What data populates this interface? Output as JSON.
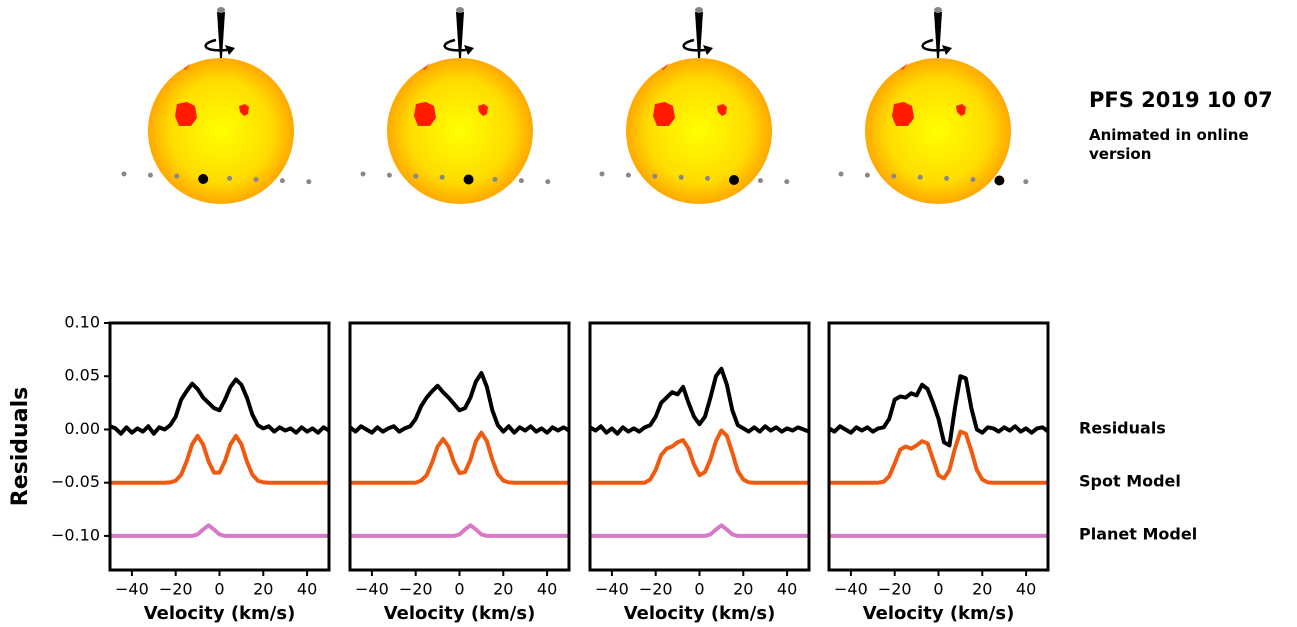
{
  "title": "PFS 2019 10 07",
  "subtitle": "Animated in online version",
  "chart_data": [
    {
      "type": "line",
      "ylabel": "Residuals",
      "xlabel": "Velocity (km/s)",
      "xlim": [
        -50,
        50
      ],
      "ylim": [
        -0.132,
        0.1
      ],
      "xticks": [
        {
          "value": -40,
          "label": "−40"
        },
        {
          "value": -20,
          "label": "−20"
        },
        0,
        20,
        40
      ],
      "yticks": [
        {
          "value": 0.1,
          "label": "0.10"
        },
        {
          "value": 0.05,
          "label": "0.05"
        },
        {
          "value": 0.0,
          "label": "0.00"
        },
        {
          "value": -0.05,
          "label": "−0.05"
        },
        {
          "value": -0.1,
          "label": "−0.10"
        }
      ],
      "x": [
        -50,
        -47.5,
        -45,
        -42.5,
        -40,
        -37.5,
        -35,
        -32.5,
        -30,
        -27.5,
        -25,
        -22.5,
        -20,
        -17.5,
        -15,
        -12.5,
        -10,
        -7.5,
        -5,
        -2.5,
        0,
        2.5,
        5,
        7.5,
        10,
        12.5,
        15,
        17.5,
        20,
        22.5,
        25,
        27.5,
        30,
        32.5,
        35,
        37.5,
        40,
        42.5,
        45,
        47.5,
        50
      ],
      "series": [
        {
          "name": "Residuals",
          "color": "#000000",
          "values": [
            0.003,
            0.001,
            -0.004,
            0.002,
            -0.003,
            0.001,
            -0.002,
            0.003,
            -0.004,
            0.002,
            0.0,
            0.004,
            0.012,
            0.028,
            0.036,
            0.043,
            0.038,
            0.03,
            0.025,
            0.02,
            0.018,
            0.028,
            0.04,
            0.047,
            0.042,
            0.03,
            0.014,
            0.004,
            0.001,
            0.003,
            -0.002,
            0.002,
            -0.001,
            0.001,
            -0.003,
            0.002,
            -0.002,
            0.001,
            -0.003,
            0.002,
            -0.001
          ]
        },
        {
          "name": "Spot Model",
          "color": "#f05a0f",
          "values": [
            -0.05,
            -0.05,
            -0.05,
            -0.05,
            -0.05,
            -0.05,
            -0.05,
            -0.05,
            -0.05,
            -0.05,
            -0.05,
            -0.0497,
            -0.0481,
            -0.0424,
            -0.03,
            -0.014,
            -0.006,
            -0.014,
            -0.03,
            -0.0405,
            -0.0405,
            -0.0297,
            -0.014,
            -0.006,
            -0.014,
            -0.03,
            -0.0424,
            -0.0481,
            -0.0497,
            -0.05,
            -0.05,
            -0.05,
            -0.05,
            -0.05,
            -0.05,
            -0.05,
            -0.05,
            -0.05,
            -0.05,
            -0.05,
            -0.05
          ]
        },
        {
          "name": "Planet Model",
          "color": "#d878c8",
          "values": [
            -0.1,
            -0.1,
            -0.1,
            -0.1,
            -0.1,
            -0.1,
            -0.1,
            -0.1,
            -0.1,
            -0.1,
            -0.1,
            -0.1,
            -0.1,
            -0.1,
            -0.1,
            -0.1,
            -0.0986,
            -0.094,
            -0.09,
            -0.094,
            -0.0986,
            -0.1,
            -0.1,
            -0.1,
            -0.1,
            -0.1,
            -0.1,
            -0.1,
            -0.1,
            -0.1,
            -0.1,
            -0.1,
            -0.1,
            -0.1,
            -0.1,
            -0.1,
            -0.1,
            -0.1,
            -0.1,
            -0.1,
            -0.1
          ]
        }
      ]
    },
    {
      "type": "line",
      "xlabel": "Velocity (km/s)",
      "xlim": [
        -50,
        50
      ],
      "ylim": [
        -0.132,
        0.1
      ],
      "xticks": [
        {
          "value": -40,
          "label": "−40"
        },
        {
          "value": -20,
          "label": "−20"
        },
        0,
        20,
        40
      ],
      "x": [
        -50,
        -47.5,
        -45,
        -42.5,
        -40,
        -37.5,
        -35,
        -32.5,
        -30,
        -27.5,
        -25,
        -22.5,
        -20,
        -17.5,
        -15,
        -12.5,
        -10,
        -7.5,
        -5,
        -2.5,
        0,
        2.5,
        5,
        7.5,
        10,
        12.5,
        15,
        17.5,
        20,
        22.5,
        25,
        27.5,
        30,
        32.5,
        35,
        37.5,
        40,
        42.5,
        45,
        47.5,
        50
      ],
      "series": [
        {
          "name": "Residuals",
          "color": "#000000",
          "values": [
            0.002,
            -0.002,
            0.003,
            0.0,
            -0.003,
            0.002,
            -0.002,
            0.001,
            0.003,
            -0.002,
            0.001,
            0.003,
            0.01,
            0.022,
            0.03,
            0.036,
            0.041,
            0.035,
            0.03,
            0.024,
            0.018,
            0.02,
            0.03,
            0.045,
            0.053,
            0.04,
            0.018,
            0.004,
            -0.002,
            0.003,
            -0.003,
            0.002,
            -0.001,
            0.003,
            -0.002,
            0.001,
            -0.003,
            0.002,
            -0.001,
            0.002,
            -0.001
          ]
        },
        {
          "name": "Spot Model",
          "color": "#f05a0f",
          "values": [
            -0.05,
            -0.05,
            -0.05,
            -0.05,
            -0.05,
            -0.05,
            -0.05,
            -0.05,
            -0.05,
            -0.05,
            -0.05,
            -0.05,
            -0.05,
            -0.048,
            -0.043,
            -0.031,
            -0.016,
            -0.009,
            -0.016,
            -0.031,
            -0.041,
            -0.04,
            -0.0285,
            -0.011,
            -0.003,
            -0.011,
            -0.0285,
            -0.042,
            -0.048,
            -0.0497,
            -0.05,
            -0.05,
            -0.05,
            -0.05,
            -0.05,
            -0.05,
            -0.05,
            -0.05,
            -0.05,
            -0.05,
            -0.05
          ]
        },
        {
          "name": "Planet Model",
          "color": "#d878c8",
          "values": [
            -0.1,
            -0.1,
            -0.1,
            -0.1,
            -0.1,
            -0.1,
            -0.1,
            -0.1,
            -0.1,
            -0.1,
            -0.1,
            -0.1,
            -0.1,
            -0.1,
            -0.1,
            -0.1,
            -0.1,
            -0.1,
            -0.1,
            -0.1,
            -0.0986,
            -0.094,
            -0.09,
            -0.094,
            -0.0986,
            -0.1,
            -0.1,
            -0.1,
            -0.1,
            -0.1,
            -0.1,
            -0.1,
            -0.1,
            -0.1,
            -0.1,
            -0.1,
            -0.1,
            -0.1,
            -0.1,
            -0.1,
            -0.1
          ]
        }
      ]
    },
    {
      "type": "line",
      "xlabel": "Velocity (km/s)",
      "xlim": [
        -50,
        50
      ],
      "ylim": [
        -0.132,
        0.1
      ],
      "xticks": [
        {
          "value": -40,
          "label": "−40"
        },
        {
          "value": -20,
          "label": "−20"
        },
        0,
        20,
        40
      ],
      "x": [
        -50,
        -47.5,
        -45,
        -42.5,
        -40,
        -37.5,
        -35,
        -32.5,
        -30,
        -27.5,
        -25,
        -22.5,
        -20,
        -17.5,
        -15,
        -12.5,
        -10,
        -7.5,
        -5,
        -2.5,
        0,
        2.5,
        5,
        7.5,
        10,
        12.5,
        15,
        17.5,
        20,
        22.5,
        25,
        27.5,
        30,
        32.5,
        35,
        37.5,
        40,
        42.5,
        45,
        47.5,
        50
      ],
      "series": [
        {
          "name": "Residuals",
          "color": "#000000",
          "values": [
            0.002,
            -0.001,
            0.003,
            -0.003,
            0.001,
            -0.004,
            0.002,
            -0.002,
            0.001,
            -0.002,
            0.002,
            0.004,
            0.012,
            0.025,
            0.03,
            0.035,
            0.033,
            0.04,
            0.025,
            0.012,
            0.005,
            0.012,
            0.03,
            0.05,
            0.057,
            0.042,
            0.018,
            0.004,
            0.001,
            -0.002,
            0.002,
            -0.002,
            0.003,
            -0.001,
            0.002,
            -0.002,
            0.001,
            -0.001,
            0.002,
            0.0,
            -0.002
          ]
        },
        {
          "name": "Spot Model",
          "color": "#f05a0f",
          "values": [
            -0.05,
            -0.05,
            -0.05,
            -0.05,
            -0.05,
            -0.05,
            -0.05,
            -0.05,
            -0.05,
            -0.05,
            -0.05,
            -0.047,
            -0.038,
            -0.024,
            -0.018,
            -0.016,
            -0.012,
            -0.01,
            -0.018,
            -0.033,
            -0.043,
            -0.04,
            -0.028,
            -0.011,
            -0.001,
            -0.006,
            -0.022,
            -0.039,
            -0.047,
            -0.0497,
            -0.05,
            -0.05,
            -0.05,
            -0.05,
            -0.05,
            -0.05,
            -0.05,
            -0.05,
            -0.05,
            -0.05,
            -0.05
          ]
        },
        {
          "name": "Planet Model",
          "color": "#d878c8",
          "values": [
            -0.1,
            -0.1,
            -0.1,
            -0.1,
            -0.1,
            -0.1,
            -0.1,
            -0.1,
            -0.1,
            -0.1,
            -0.1,
            -0.1,
            -0.1,
            -0.1,
            -0.1,
            -0.1,
            -0.1,
            -0.1,
            -0.1,
            -0.1,
            -0.1,
            -0.1,
            -0.0986,
            -0.094,
            -0.09,
            -0.094,
            -0.0986,
            -0.1,
            -0.1,
            -0.1,
            -0.1,
            -0.1,
            -0.1,
            -0.1,
            -0.1,
            -0.1,
            -0.1,
            -0.1,
            -0.1,
            -0.1,
            -0.1
          ]
        }
      ]
    },
    {
      "type": "line",
      "xlabel": "Velocity (km/s)",
      "xlim": [
        -50,
        50
      ],
      "ylim": [
        -0.132,
        0.1
      ],
      "xticks": [
        {
          "value": -40,
          "label": "−40"
        },
        {
          "value": -20,
          "label": "−20"
        },
        0,
        20,
        40
      ],
      "x": [
        -50,
        -47.5,
        -45,
        -42.5,
        -40,
        -37.5,
        -35,
        -32.5,
        -30,
        -27.5,
        -25,
        -22.5,
        -20,
        -17.5,
        -15,
        -12.5,
        -10,
        -7.5,
        -5,
        -2.5,
        0,
        2.5,
        5,
        7.5,
        10,
        12.5,
        15,
        17.5,
        20,
        22.5,
        25,
        27.5,
        30,
        32.5,
        35,
        37.5,
        40,
        42.5,
        45,
        47.5,
        50
      ],
      "series": [
        {
          "name": "Residuals",
          "color": "#000000",
          "values": [
            0.001,
            -0.002,
            0.003,
            0.0,
            -0.003,
            0.002,
            -0.001,
            0.002,
            -0.002,
            0.001,
            0.002,
            0.01,
            0.028,
            0.031,
            0.03,
            0.034,
            0.032,
            0.042,
            0.038,
            0.025,
            0.01,
            -0.012,
            -0.015,
            0.02,
            0.05,
            0.048,
            0.02,
            0.0,
            -0.003,
            0.002,
            0.001,
            -0.002,
            0.002,
            -0.001,
            0.003,
            -0.002,
            0.001,
            -0.003,
            0.001,
            0.002,
            -0.002
          ]
        },
        {
          "name": "Spot Model",
          "color": "#f05a0f",
          "values": [
            -0.05,
            -0.05,
            -0.05,
            -0.05,
            -0.05,
            -0.05,
            -0.05,
            -0.05,
            -0.05,
            -0.05,
            -0.049,
            -0.044,
            -0.032,
            -0.019,
            -0.016,
            -0.018,
            -0.015,
            -0.011,
            -0.013,
            -0.028,
            -0.043,
            -0.046,
            -0.038,
            -0.018,
            -0.002,
            -0.004,
            -0.02,
            -0.038,
            -0.047,
            -0.0497,
            -0.05,
            -0.05,
            -0.05,
            -0.05,
            -0.05,
            -0.05,
            -0.05,
            -0.05,
            -0.05,
            -0.05,
            -0.05
          ]
        },
        {
          "name": "Planet Model",
          "color": "#d878c8",
          "values": [
            -0.1,
            -0.1,
            -0.1,
            -0.1,
            -0.1,
            -0.1,
            -0.1,
            -0.1,
            -0.1,
            -0.1,
            -0.1,
            -0.1,
            -0.1,
            -0.1,
            -0.1,
            -0.1,
            -0.1,
            -0.1,
            -0.1,
            -0.1,
            -0.1,
            -0.1,
            -0.1,
            -0.1,
            -0.1,
            -0.1,
            -0.1,
            -0.1,
            -0.1,
            -0.1,
            -0.1,
            -0.1,
            -0.1,
            -0.1,
            -0.1,
            -0.1,
            -0.1,
            -0.1,
            -0.1,
            -0.1,
            -0.1
          ]
        }
      ]
    }
  ]
}
